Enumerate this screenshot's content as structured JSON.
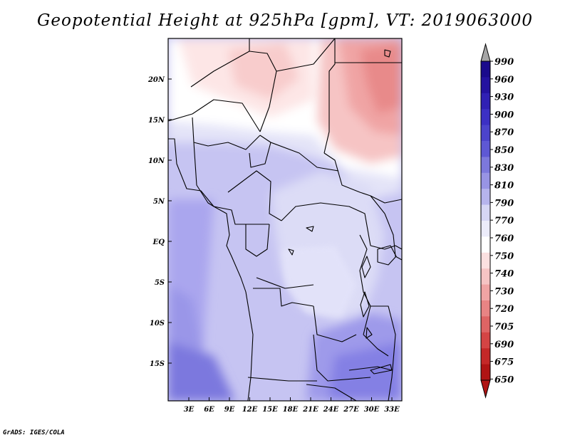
{
  "title": "Geopotential Height at 925hPa [gpm], VT: 2019063000",
  "credit": "GrADS: IGES/COLA",
  "map": {
    "lat_labels": [
      "20N",
      "15N",
      "10N",
      "5N",
      "EQ",
      "5S",
      "10S",
      "15S"
    ],
    "lon_labels": [
      "3E",
      "6E",
      "9E",
      "12E",
      "15E",
      "18E",
      "21E",
      "24E",
      "27E",
      "30E",
      "33E"
    ]
  },
  "colorbar": {
    "levels": [
      "990",
      "960",
      "930",
      "900",
      "870",
      "850",
      "830",
      "810",
      "790",
      "770",
      "760",
      "750",
      "740",
      "730",
      "720",
      "705",
      "690",
      "675",
      "650"
    ],
    "colors": [
      "#1a0a8c",
      "#2412a0",
      "#3020b4",
      "#3c30c4",
      "#4c44cc",
      "#5e58d4",
      "#7c78dc",
      "#9894e4",
      "#b6b4ec",
      "#d6d6f4",
      "#ececfa",
      "#ffffff",
      "#fbe0e0",
      "#f6c4c4",
      "#f0a4a4",
      "#e88484",
      "#de6464",
      "#d44444",
      "#c42828",
      "#b01414"
    ],
    "top_arrow_color": "#a6a6a6",
    "bottom_arrow_color": "#b01414"
  }
}
